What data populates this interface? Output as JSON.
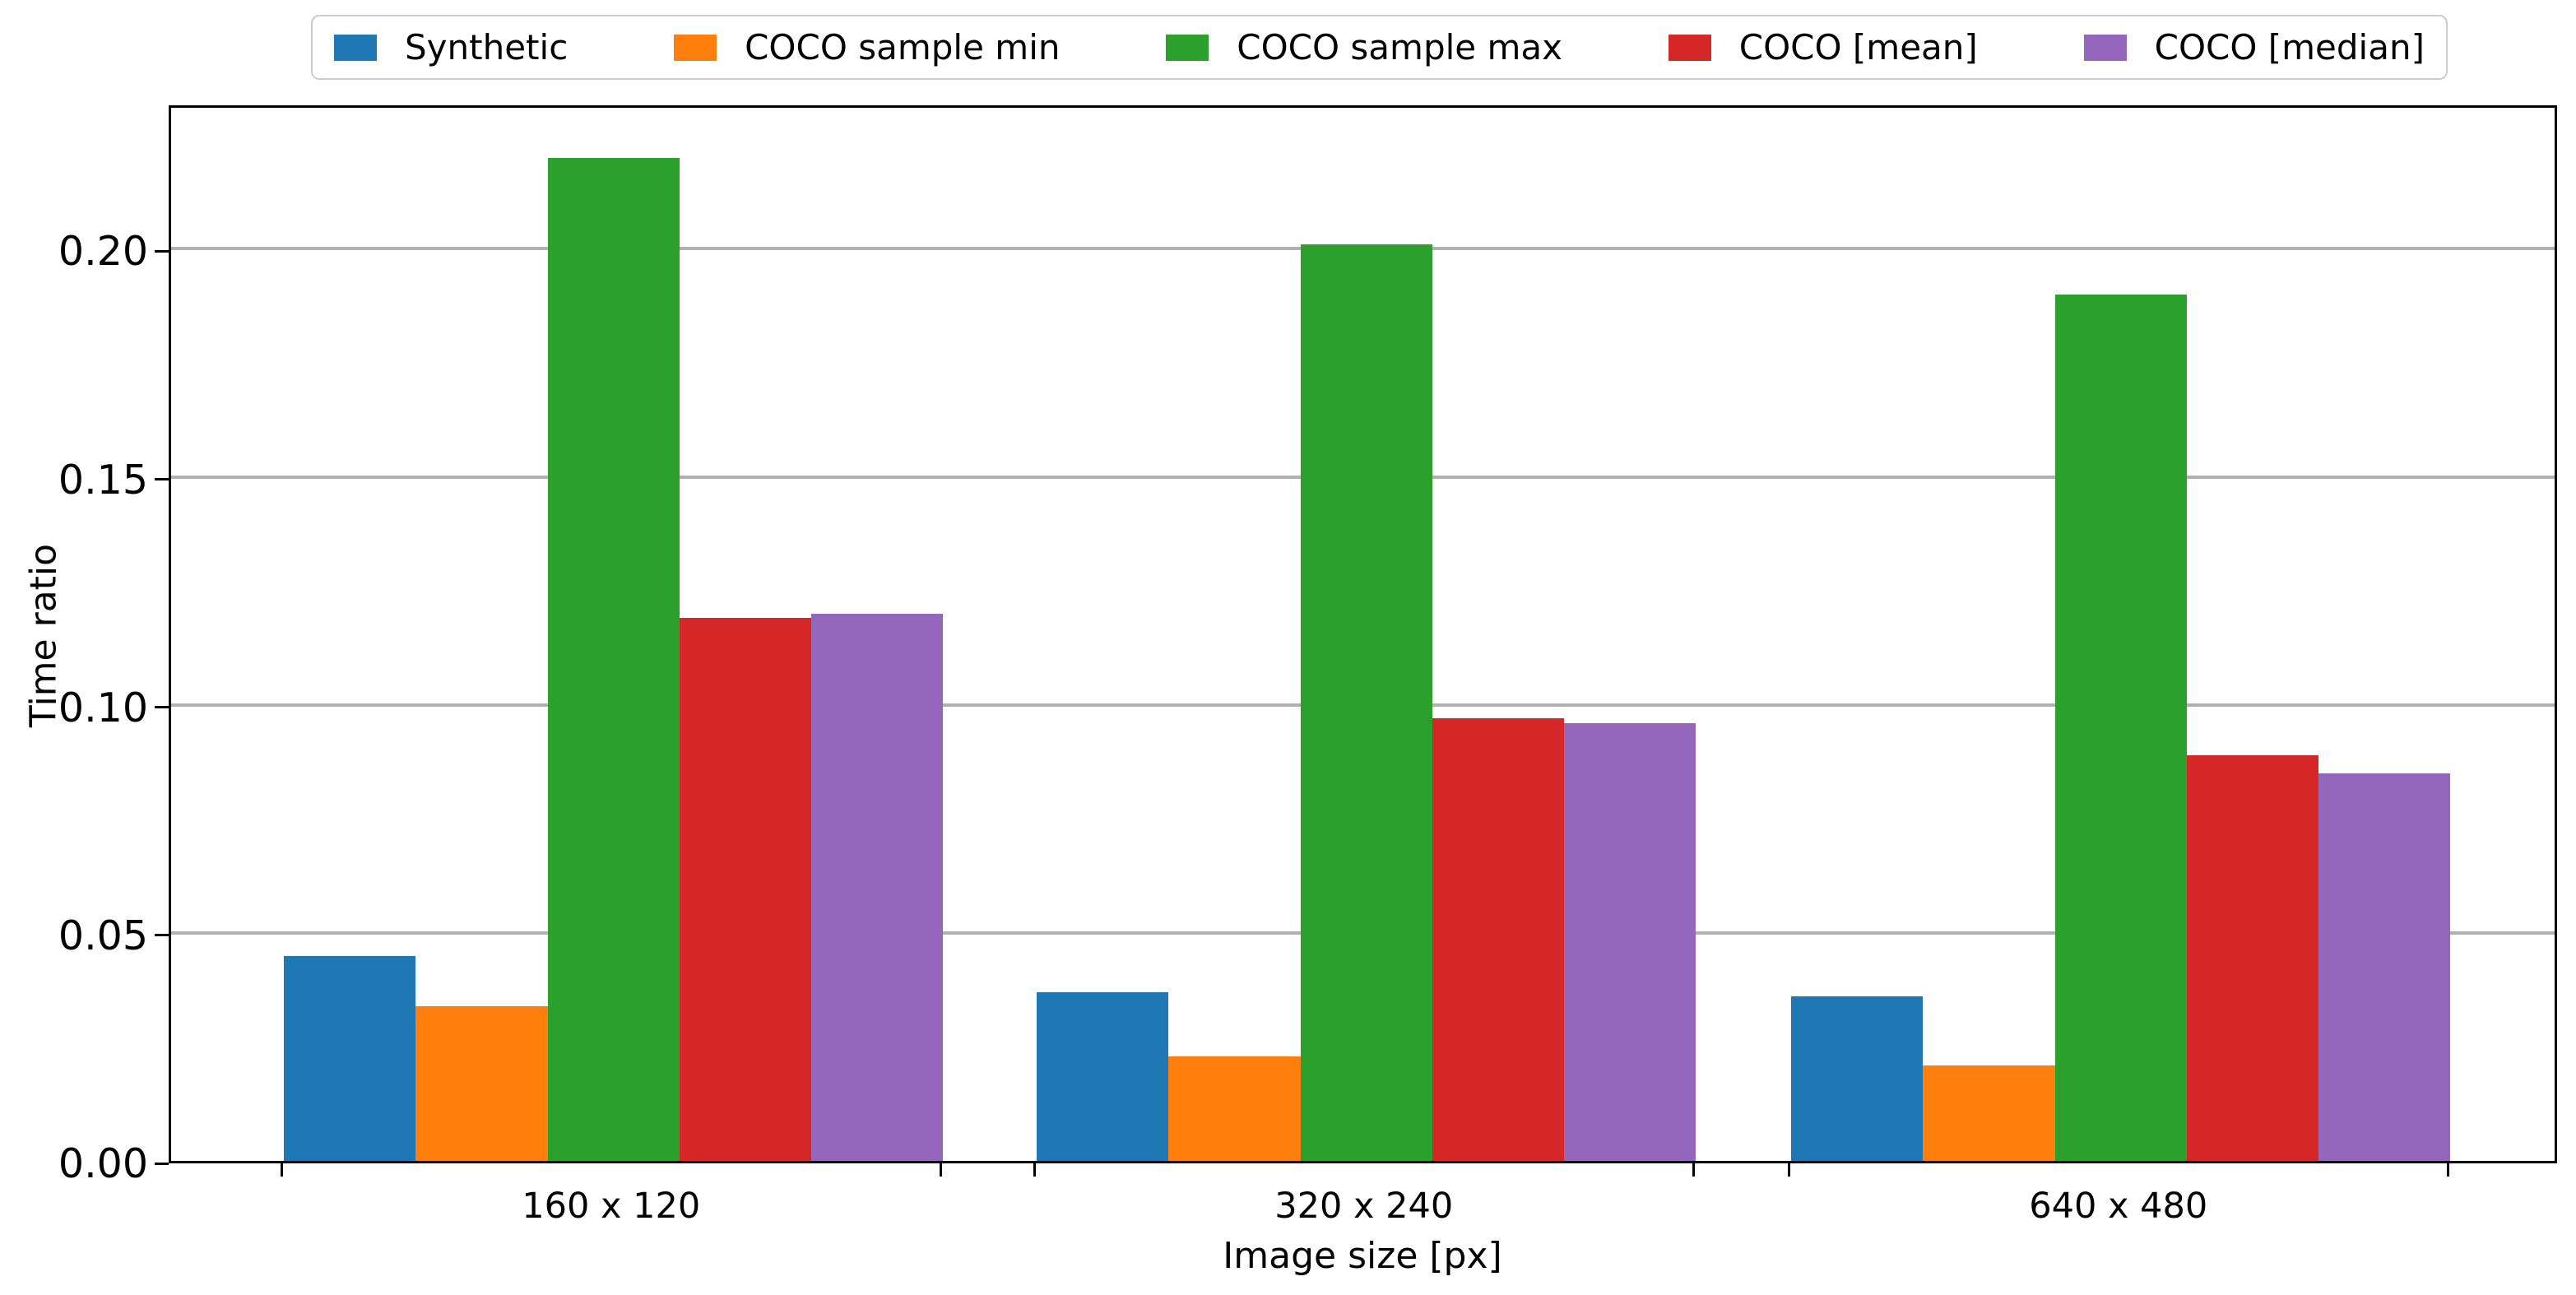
{
  "chart_data": {
    "type": "bar",
    "title": "",
    "xlabel": "Image size [px]",
    "ylabel": "Time ratio",
    "categories": [
      "160 x 120",
      "320 x 240",
      "640 x 480"
    ],
    "series": [
      {
        "name": "Synthetic",
        "color": "#1f77b4",
        "values": [
          0.045,
          0.037,
          0.036
        ]
      },
      {
        "name": "COCO sample min",
        "color": "#ff7f0e",
        "values": [
          0.034,
          0.023,
          0.021
        ]
      },
      {
        "name": "COCO sample max",
        "color": "#2ca02c",
        "values": [
          0.22,
          0.201,
          0.19
        ]
      },
      {
        "name": "COCO [mean]",
        "color": "#d62728",
        "values": [
          0.119,
          0.097,
          0.089
        ]
      },
      {
        "name": "COCO [median]",
        "color": "#9467bd",
        "values": [
          0.12,
          0.096,
          0.085
        ]
      }
    ],
    "ylim": [
      0,
      0.232
    ],
    "yticks": [
      0.0,
      0.05,
      0.1,
      0.15,
      0.2
    ],
    "ytick_labels": [
      "0.00",
      "0.05",
      "0.10",
      "0.15",
      "0.20"
    ],
    "grid": "horizontal-gridlines-on",
    "legend_position": "top",
    "colors": {
      "grid": "#b0b0b0",
      "spine": "#000000",
      "text": "#000000",
      "legend_border": "#cccccc",
      "background": "#ffffff"
    }
  }
}
